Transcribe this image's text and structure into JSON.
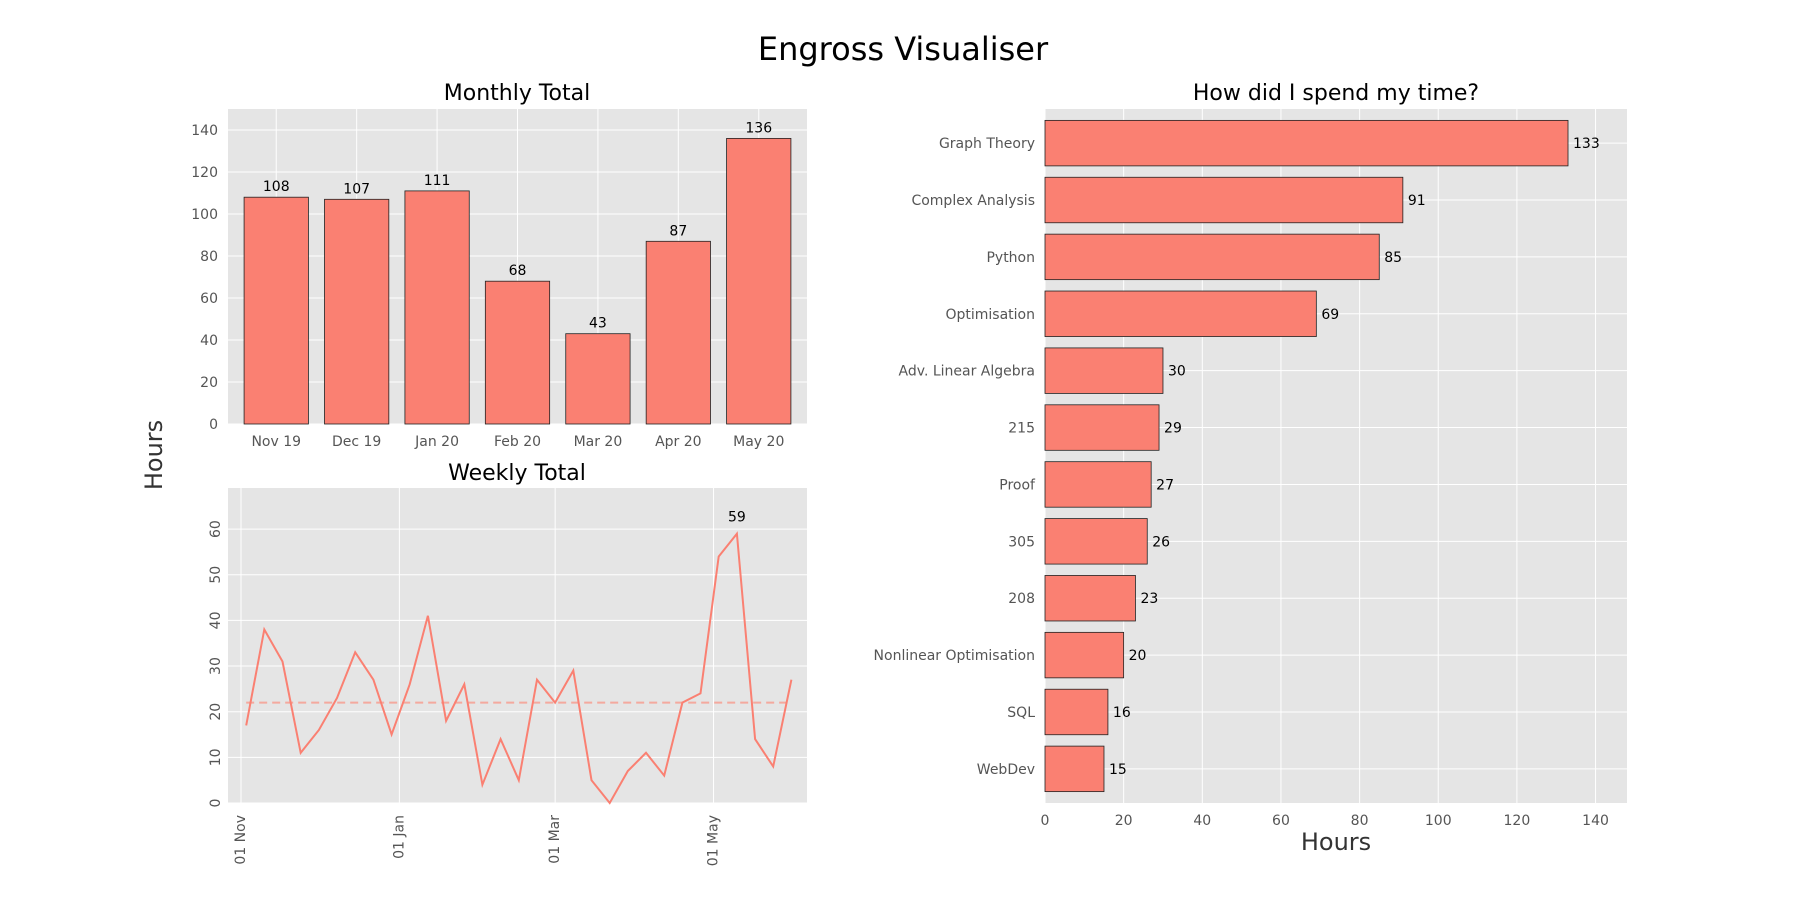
{
  "figure": {
    "title": "Engross Visualiser",
    "ylabel": "Hours"
  },
  "colors": {
    "bar": "#fa8072",
    "axes_bg": "#e5e5e5",
    "grid": "#ffffff",
    "edge": "#222222",
    "mean_line": "#f4a99e"
  },
  "chart_data": [
    {
      "type": "bar",
      "title": "Monthly Total",
      "categories": [
        "Nov 19",
        "Dec 19",
        "Jan 20",
        "Feb 20",
        "Mar 20",
        "Apr 20",
        "May 20"
      ],
      "values": [
        108,
        107,
        111,
        68,
        43,
        87,
        136
      ],
      "data_labels": [
        "108",
        "107",
        "111",
        "68",
        "43",
        "87",
        "136"
      ],
      "ylim": [
        0,
        150
      ],
      "yticks": [
        0,
        20,
        40,
        60,
        80,
        100,
        120,
        140
      ],
      "grid": true
    },
    {
      "type": "line",
      "title": "Weekly Total",
      "x": [
        "2019-11-03",
        "2019-11-10",
        "2019-11-17",
        "2019-11-24",
        "2019-12-01",
        "2019-12-08",
        "2019-12-15",
        "2019-12-22",
        "2019-12-29",
        "2020-01-05",
        "2020-01-12",
        "2020-01-19",
        "2020-01-26",
        "2020-02-02",
        "2020-02-09",
        "2020-02-16",
        "2020-02-23",
        "2020-03-01",
        "2020-03-08",
        "2020-03-15",
        "2020-03-22",
        "2020-03-29",
        "2020-04-05",
        "2020-04-12",
        "2020-04-19",
        "2020-04-26",
        "2020-05-03",
        "2020-05-10",
        "2020-05-17",
        "2020-05-24",
        "2020-05-31"
      ],
      "values": [
        17,
        38,
        31,
        11,
        16,
        23,
        33,
        27,
        15,
        26,
        41,
        18,
        26,
        4,
        14,
        5,
        27,
        22,
        29,
        5,
        0,
        7,
        11,
        6,
        22,
        24,
        54,
        59,
        14,
        8,
        27
      ],
      "mean": 22,
      "peak_label": "59",
      "xlim": [
        "2019-10-27",
        "2020-06-06"
      ],
      "xticks": [
        {
          "date": "2019-11-01",
          "label": "01 Nov"
        },
        {
          "date": "2020-01-01",
          "label": "01 Jan"
        },
        {
          "date": "2020-03-01",
          "label": "01 Mar"
        },
        {
          "date": "2020-05-01",
          "label": "01 May"
        }
      ],
      "ylim": [
        0,
        69
      ],
      "yticks": [
        0,
        10,
        20,
        30,
        40,
        50,
        60
      ],
      "grid": true
    },
    {
      "type": "bar",
      "orientation": "horizontal",
      "title": "How did I spend my time?",
      "categories": [
        "Graph Theory",
        "Complex Analysis",
        "Python",
        "Optimisation",
        "Adv. Linear Algebra",
        "215",
        "Proof",
        "305",
        "208",
        "Nonlinear Optimisation",
        "SQL",
        "WebDev"
      ],
      "values": [
        133,
        91,
        85,
        69,
        30,
        29,
        27,
        26,
        23,
        20,
        16,
        15
      ],
      "data_labels": [
        "133",
        "91",
        "85",
        "69",
        "30",
        "29",
        "27",
        "26",
        "23",
        "20",
        "16",
        "15"
      ],
      "xlabel": "Hours",
      "xlim": [
        0,
        148
      ],
      "xticks": [
        0,
        20,
        40,
        60,
        80,
        100,
        120,
        140
      ],
      "grid": true
    }
  ]
}
